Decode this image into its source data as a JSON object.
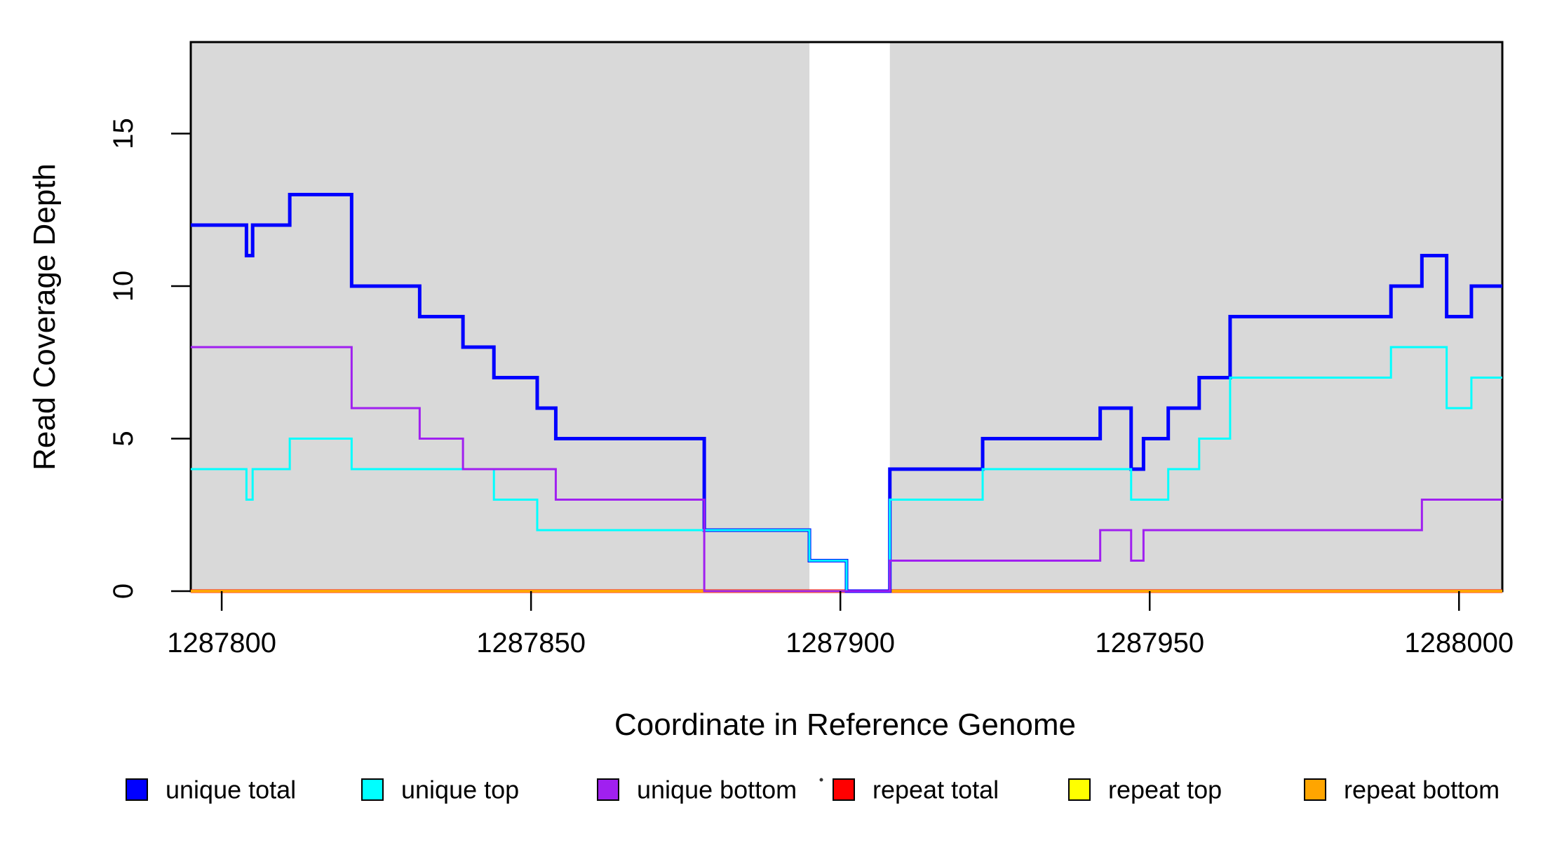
{
  "chart_data": {
    "type": "line",
    "step": true,
    "title": "",
    "xlabel": "Coordinate in Reference Genome",
    "ylabel": "Read Coverage Depth",
    "xlim": [
      1287795,
      1288007
    ],
    "ylim": [
      0,
      18
    ],
    "x_ticks": [
      1287800,
      1287850,
      1287900,
      1287950,
      1288000
    ],
    "y_ticks": [
      0,
      5,
      10,
      15
    ],
    "grid": false,
    "background_color": "#ffffff",
    "shaded_region_color": "#d9d9d9",
    "shaded_regions": [
      {
        "name": "left-gray-block",
        "x0": 1287795,
        "x1": 1287895
      },
      {
        "name": "right-gray-block",
        "x0": 1287908,
        "x1": 1288007
      }
    ],
    "series": [
      {
        "name": "repeat total",
        "color": "#ff0000",
        "line_width": 5,
        "points": [
          [
            1287795,
            0
          ]
        ]
      },
      {
        "name": "repeat top",
        "color": "#ffff00",
        "line_width": 3,
        "points": [
          [
            1287795,
            0
          ]
        ]
      },
      {
        "name": "repeat bottom",
        "color": "#ffa500",
        "line_width": 4,
        "points": [
          [
            1287795,
            0
          ]
        ]
      },
      {
        "name": "unique total",
        "color": "#0000ff",
        "line_width": 5,
        "points": [
          [
            1287795,
            12
          ],
          [
            1287804,
            11
          ],
          [
            1287805,
            12
          ],
          [
            1287811,
            13
          ],
          [
            1287821,
            10
          ],
          [
            1287832,
            9
          ],
          [
            1287839,
            8
          ],
          [
            1287844,
            7
          ],
          [
            1287851,
            6
          ],
          [
            1287854,
            5
          ],
          [
            1287878,
            2
          ],
          [
            1287895,
            1
          ],
          [
            1287901,
            0
          ],
          [
            1287908,
            4
          ],
          [
            1287923,
            5
          ],
          [
            1287942,
            6
          ],
          [
            1287947,
            4
          ],
          [
            1287949,
            5
          ],
          [
            1287953,
            6
          ],
          [
            1287958,
            7
          ],
          [
            1287963,
            9
          ],
          [
            1287989,
            10
          ],
          [
            1287994,
            11
          ],
          [
            1287998,
            9
          ],
          [
            1288002,
            10
          ]
        ]
      },
      {
        "name": "unique top",
        "color": "#00ffff",
        "line_width": 3,
        "points": [
          [
            1287795,
            4
          ],
          [
            1287804,
            3
          ],
          [
            1287805,
            4
          ],
          [
            1287811,
            5
          ],
          [
            1287821,
            4
          ],
          [
            1287844,
            3
          ],
          [
            1287851,
            2
          ],
          [
            1287895,
            1
          ],
          [
            1287901,
            0
          ],
          [
            1287908,
            3
          ],
          [
            1287923,
            4
          ],
          [
            1287947,
            3
          ],
          [
            1287953,
            4
          ],
          [
            1287958,
            5
          ],
          [
            1287963,
            7
          ],
          [
            1287989,
            8
          ],
          [
            1287998,
            6
          ],
          [
            1288002,
            7
          ]
        ]
      },
      {
        "name": "unique bottom",
        "color": "#a020f0",
        "line_width": 3,
        "points": [
          [
            1287795,
            8
          ],
          [
            1287821,
            6
          ],
          [
            1287832,
            5
          ],
          [
            1287839,
            4
          ],
          [
            1287854,
            3
          ],
          [
            1287878,
            0
          ],
          [
            1287908,
            1
          ],
          [
            1287942,
            2
          ],
          [
            1287947,
            1
          ],
          [
            1287949,
            2
          ],
          [
            1287994,
            3
          ]
        ]
      }
    ],
    "legend_position": "bottom",
    "legend": [
      {
        "label": "unique total",
        "color": "#0000ff"
      },
      {
        "label": "unique top",
        "color": "#00ffff"
      },
      {
        "label": "unique bottom",
        "color": "#a020f0"
      },
      {
        "label": "repeat total",
        "color": "#ff0000"
      },
      {
        "label": "repeat top",
        "color": "#ffff00"
      },
      {
        "label": "repeat bottom",
        "color": "#ffa500"
      }
    ]
  }
}
